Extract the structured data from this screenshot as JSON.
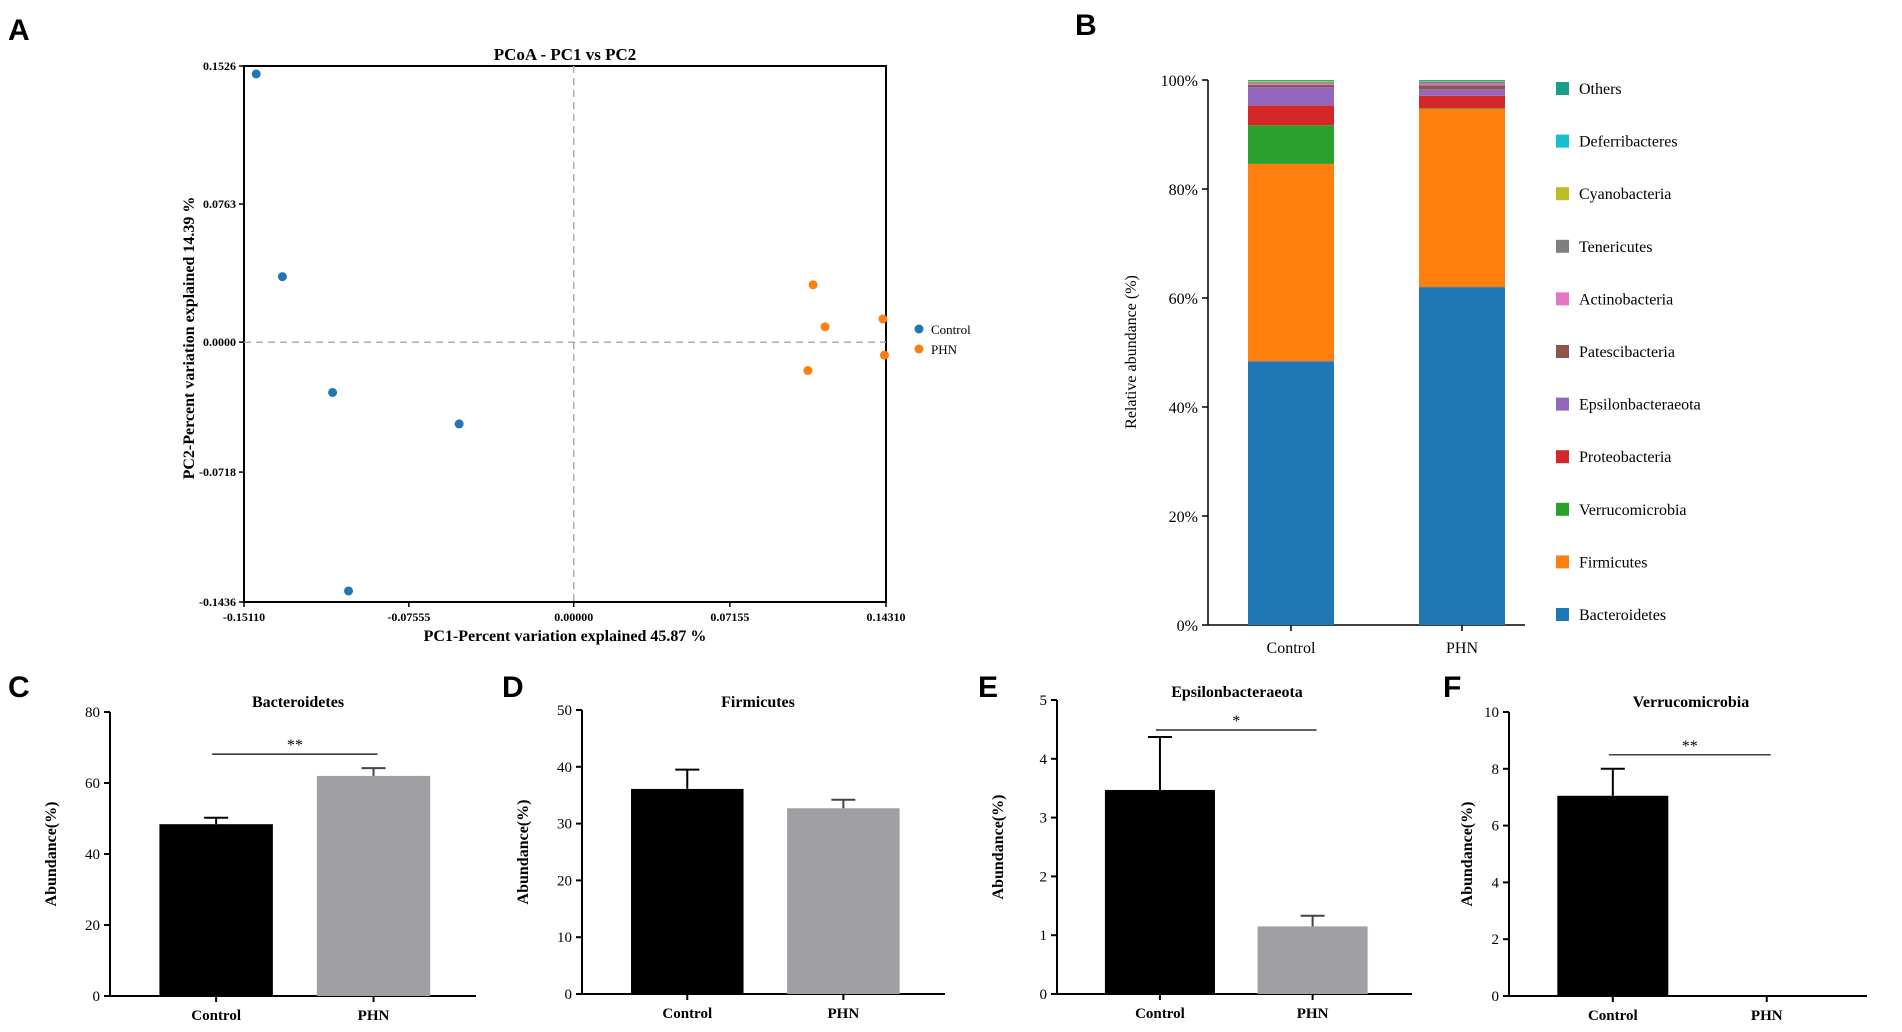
{
  "panels": {
    "A": {
      "letter": "A",
      "chart_data": {
        "type": "scatter",
        "title": "PCoA - PC1 vs PC2",
        "xlabel": "PC1-Percent variation explained 45.87 %",
        "ylabel": "PC2-Percent variation explained 14.39 %",
        "xlim": [
          -0.1511,
          0.1431
        ],
        "ylim": [
          -0.1436,
          0.1526
        ],
        "xticks": [
          -0.1511,
          -0.07555,
          0.0,
          0.07155,
          0.1431
        ],
        "xtick_labels": [
          "-0.15110",
          "-0.07555",
          "0.00000",
          "0.07155",
          "0.14310"
        ],
        "yticks": [
          0.1526,
          0.0763,
          0.0,
          -0.0718,
          -0.1436
        ],
        "ytick_labels": [
          "0.1526",
          "0.0763",
          "0.0000",
          "-0.0718",
          "-0.1436"
        ],
        "series": [
          {
            "name": "Control",
            "color": "#1f77b4",
            "points": [
              [
                -0.1455,
                0.1482
              ],
              [
                -0.1335,
                0.0362
              ],
              [
                -0.1105,
                -0.0278
              ],
              [
                -0.0525,
                -0.0452
              ],
              [
                -0.1032,
                -0.1375
              ]
            ]
          },
          {
            "name": "PHN",
            "color": "#ff7f0e",
            "points": [
              [
                0.1097,
                0.0317
              ],
              [
                0.1073,
                -0.0157
              ],
              [
                0.1152,
                0.0085
              ],
              [
                0.1417,
                0.0128
              ],
              [
                0.1424,
                -0.0072
              ]
            ]
          }
        ],
        "legend": [
          "Control",
          "PHN"
        ],
        "reference_lines": "dashed at x=0 and y=0"
      }
    },
    "B": {
      "letter": "B",
      "chart_data": {
        "type": "bar",
        "stacked": true,
        "categories": [
          "Control",
          "PHN"
        ],
        "ylabel": "Relative abundance (%)",
        "ylim": [
          0,
          100
        ],
        "yticks": [
          0,
          20,
          40,
          60,
          80,
          100
        ],
        "ytick_labels": [
          "0%",
          "20%",
          "40%",
          "60%",
          "80%",
          "100%"
        ],
        "series": [
          {
            "name": "Bacteroidetes",
            "color": "#1f77b4",
            "values": [
              48.4,
              62.0
            ]
          },
          {
            "name": "Firmicutes",
            "color": "#ff7f0e",
            "values": [
              36.2,
              32.7
            ]
          },
          {
            "name": "Verrucomicrobia",
            "color": "#2ca02c",
            "values": [
              7.1,
              0.1
            ]
          },
          {
            "name": "Proteobacteria",
            "color": "#d62728",
            "values": [
              3.6,
              2.3
            ]
          },
          {
            "name": "Epsilonbacteraeota",
            "color": "#9467bd",
            "values": [
              3.4,
              1.2
            ]
          },
          {
            "name": "Patescibacteria",
            "color": "#8c564b",
            "values": [
              0.4,
              0.7
            ]
          },
          {
            "name": "Actinobacteria",
            "color": "#e377c2",
            "values": [
              0.2,
              0.3
            ]
          },
          {
            "name": "Tenericutes",
            "color": "#7f7f7f",
            "values": [
              0.3,
              0.4
            ]
          },
          {
            "name": "Cyanobacteria",
            "color": "#bcbd22",
            "values": [
              0.2,
              0.1
            ]
          },
          {
            "name": "Deferribacteres",
            "color": "#17becf",
            "values": [
              0.1,
              0.1
            ]
          },
          {
            "name": "Others",
            "color": "#1a9e8c",
            "values": [
              0.1,
              0.1
            ]
          }
        ],
        "legend_order": [
          "Others",
          "Deferribacteres",
          "Cyanobacteria",
          "Tenericutes",
          "Actinobacteria",
          "Patescibacteria",
          "Epsilonbacteraeota",
          "Proteobacteria",
          "Verrucomicrobia",
          "Firmicutes",
          "Bacteroidetes"
        ]
      }
    },
    "C": {
      "letter": "C",
      "chart_data": {
        "type": "bar",
        "title": "Bacteroidetes",
        "ylabel": "Abundance(%)",
        "categories": [
          "Control",
          "PHN"
        ],
        "values": [
          48.4,
          62.0
        ],
        "errors": [
          1.8,
          2.2
        ],
        "colors": [
          "#000000",
          "#a0a0a4"
        ],
        "ylim": [
          0,
          80
        ],
        "yticks": [
          0,
          20,
          40,
          60,
          80
        ],
        "significance": "**"
      }
    },
    "D": {
      "letter": "D",
      "chart_data": {
        "type": "bar",
        "title": "Firmicutes",
        "ylabel": "Abundance(%)",
        "categories": [
          "Control",
          "PHN"
        ],
        "values": [
          36.1,
          32.7
        ],
        "errors": [
          3.4,
          1.5
        ],
        "colors": [
          "#000000",
          "#a0a0a4"
        ],
        "ylim": [
          0,
          50
        ],
        "yticks": [
          0,
          10,
          20,
          30,
          40,
          50
        ],
        "significance": ""
      }
    },
    "E": {
      "letter": "E",
      "chart_data": {
        "type": "bar",
        "title": "Epsilonbacteraeota",
        "ylabel": "Abundance(%)",
        "categories": [
          "Control",
          "PHN"
        ],
        "values": [
          3.47,
          1.15
        ],
        "errors": [
          0.9,
          0.18
        ],
        "colors": [
          "#000000",
          "#a0a0a4"
        ],
        "ylim": [
          0,
          5
        ],
        "yticks": [
          0,
          1,
          2,
          3,
          4,
          5
        ],
        "significance": "*"
      }
    },
    "F": {
      "letter": "F",
      "chart_data": {
        "type": "bar",
        "title": "Verrucomicrobia",
        "ylabel": "Abundance(%)",
        "categories": [
          "Control",
          "PHN"
        ],
        "values": [
          7.05,
          0.0
        ],
        "errors": [
          0.95,
          0
        ],
        "colors": [
          "#000000",
          "#a0a0a4"
        ],
        "ylim": [
          0,
          10
        ],
        "yticks": [
          0,
          2,
          4,
          6,
          8,
          10
        ],
        "significance": "**"
      }
    }
  }
}
